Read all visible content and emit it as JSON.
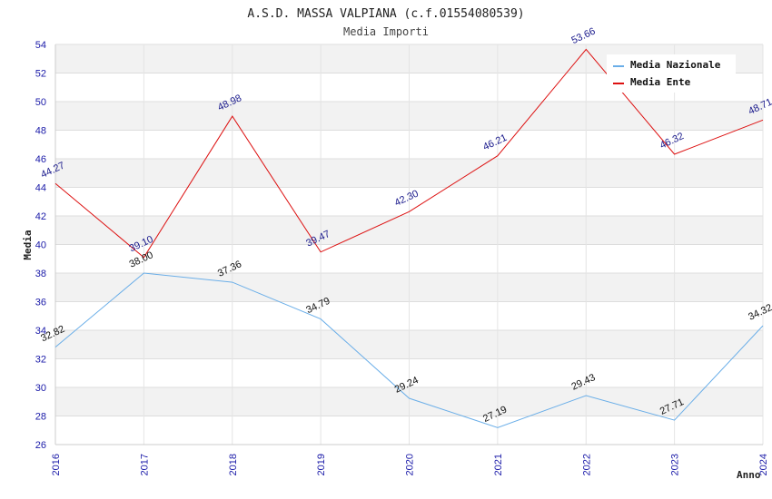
{
  "chart_data": {
    "type": "line",
    "title": "A.S.D. MASSA VALPIANA (c.f.01554080539)",
    "subtitle": "Media Importi",
    "xlabel": "Anno",
    "ylabel": "Media",
    "x": [
      "2016",
      "2017",
      "2018",
      "2019",
      "2020",
      "2021",
      "2022",
      "2023",
      "2024"
    ],
    "ylim": [
      26,
      54
    ],
    "yticks": [
      26,
      28,
      30,
      32,
      34,
      36,
      38,
      40,
      42,
      44,
      46,
      48,
      50,
      52,
      54
    ],
    "grid": true,
    "legend_position": "top-right",
    "series": [
      {
        "name": "Media Nazionale",
        "color": "#6aaee8",
        "values": [
          32.82,
          38.0,
          37.36,
          34.79,
          29.24,
          27.19,
          29.43,
          27.71,
          34.32
        ],
        "labels": [
          "32.82",
          "38.00",
          "37.36",
          "34.79",
          "29.24",
          "27.19",
          "29.43",
          "27.71",
          "34.32"
        ]
      },
      {
        "name": "Media Ente",
        "color": "#dd1111",
        "values": [
          44.27,
          39.1,
          48.98,
          39.47,
          42.3,
          46.21,
          53.66,
          46.32,
          48.71
        ],
        "labels": [
          "44.27",
          "39.10",
          "48.98",
          "39.47",
          "42.30",
          "46.21",
          "53.66",
          "46.32",
          "48.71"
        ]
      }
    ]
  }
}
